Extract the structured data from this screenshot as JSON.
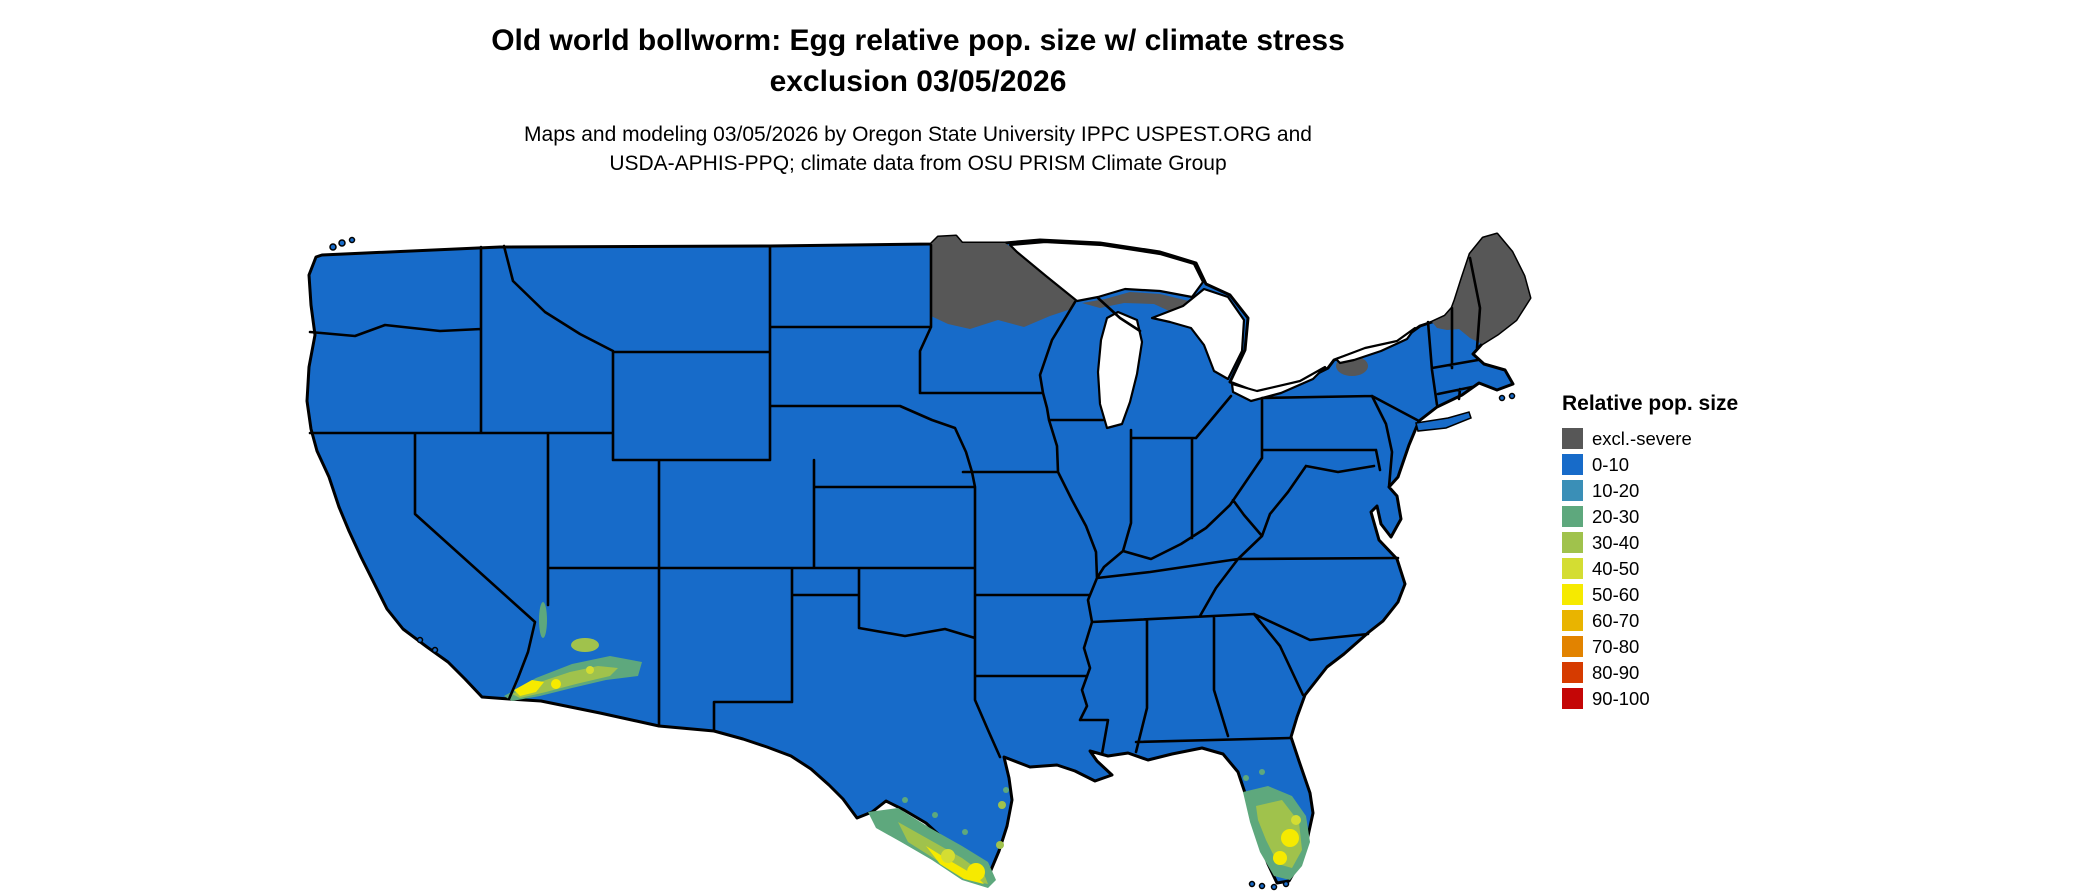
{
  "title": {
    "line1": "Old world bollworm: Egg relative pop. size w/ climate stress",
    "line2": "exclusion 03/05/2026"
  },
  "subtitle": {
    "line1": "Maps and modeling 03/05/2026 by Oregon State University IPPC USPEST.ORG and",
    "line2": "USDA-APHIS-PPQ; climate data from OSU PRISM Climate Group"
  },
  "legend": {
    "title": "Relative pop. size",
    "items": [
      {
        "label": "excl.-severe",
        "color": "#575757"
      },
      {
        "label": "0-10",
        "color": "#176bc9"
      },
      {
        "label": "10-20",
        "color": "#3a8fb7"
      },
      {
        "label": "20-30",
        "color": "#5ea87d"
      },
      {
        "label": "30-40",
        "color": "#a0c24c"
      },
      {
        "label": "40-50",
        "color": "#d4dd32"
      },
      {
        "label": "50-60",
        "color": "#f6ea00"
      },
      {
        "label": "60-70",
        "color": "#e9b400"
      },
      {
        "label": "70-80",
        "color": "#e28300"
      },
      {
        "label": "80-90",
        "color": "#d63b00"
      },
      {
        "label": "90-100",
        "color": "#c40606"
      }
    ]
  },
  "map": {
    "background": "#ffffff",
    "water_color": "#ffffff",
    "border_color": "#000000",
    "base_fill": "#176bc9",
    "exclusion_fill": "#575757",
    "hotspot_fills": {
      "green": "#5ea87d",
      "yellow_green": "#a0c24c",
      "bright_green": "#d4dd32",
      "yellow": "#f6ea00"
    },
    "regions": [
      {
        "area": "conus-majority",
        "value": "0-10"
      },
      {
        "area": "northern-minnesota-lake-superior-shore",
        "value": "excl.-severe"
      },
      {
        "area": "northern-new-england",
        "value": "excl.-severe"
      },
      {
        "area": "adirondacks-new-york",
        "value": "excl.-severe"
      },
      {
        "area": "south-texas-rio-grande-valley",
        "value": "30-60"
      },
      {
        "area": "southern-arizona",
        "value": "30-50"
      },
      {
        "area": "imperial-valley-california",
        "value": "40-60"
      },
      {
        "area": "central-south-florida",
        "value": "20-60"
      }
    ]
  }
}
